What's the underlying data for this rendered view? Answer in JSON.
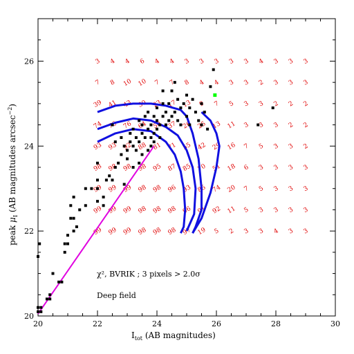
{
  "chart_data": {
    "type": "scatter",
    "xlabel": "I",
    "xlabel_sub": "tot",
    "xlabel_rest": " (AB magnitudes)",
    "ylabel_prefix": "peak ",
    "ylabel_mu": "μ",
    "ylabel_sub": "I",
    "ylabel_rest": "  (AB magnitudes arcsec",
    "ylabel_sup": "−2",
    "ylabel_close": ")",
    "xlim": [
      20,
      30
    ],
    "ylim": [
      20,
      27
    ],
    "xticks": [
      20,
      22,
      24,
      26,
      28,
      30
    ],
    "yticks": [
      20,
      22,
      24,
      26
    ],
    "annotation_chi": "χ², BVRIK ; 3 pixels > 2.0σ",
    "annotation_field": "Deep field",
    "grid_x": [
      22,
      22.5,
      23,
      23.5,
      24,
      24.5,
      25,
      25.5,
      26,
      26.5,
      27,
      27.5,
      28,
      28.5,
      29
    ],
    "grid_y": [
      26,
      25.5,
      25,
      24.5,
      24,
      23.5,
      23,
      22.5,
      22
    ],
    "grid_values": [
      [
        "3",
        "4",
        "4",
        "6",
        "4",
        "4",
        "3",
        "3",
        "3",
        "3",
        "3",
        "4",
        "3",
        "3",
        "3"
      ],
      [
        "7",
        "8",
        "10",
        "10",
        "7",
        "7",
        "8",
        "4",
        "4",
        "3",
        "3",
        "2",
        "3",
        "3",
        "3"
      ],
      [
        "39",
        "41",
        "43",
        "30",
        "23",
        "17",
        "13",
        "9",
        "7",
        "5",
        "3",
        "3",
        "2",
        "2",
        "2"
      ],
      [
        "74",
        "76",
        "76",
        "64",
        "50",
        "37",
        "26",
        "25",
        "13",
        "11",
        "3",
        "3",
        "3",
        "2",
        "2"
      ],
      [
        "93",
        "93",
        "92",
        "88",
        "81",
        "71",
        "55",
        "42",
        "29",
        "16",
        "7",
        "5",
        "3",
        "3",
        "2"
      ],
      [
        "98",
        "98",
        "98",
        "98",
        "95",
        "87",
        "85",
        "70",
        "51",
        "18",
        "6",
        "3",
        "3",
        "3",
        "3"
      ],
      [
        "99",
        "99",
        "99",
        "98",
        "98",
        "96",
        "93",
        "85",
        "74",
        "20",
        "7",
        "5",
        "3",
        "3",
        "3"
      ],
      [
        "99",
        "99",
        "99",
        "98",
        "98",
        "98",
        "96",
        "91",
        "92",
        "11",
        "5",
        "3",
        "3",
        "3",
        "3"
      ],
      [
        "99",
        "99",
        "99",
        "98",
        "98",
        "98",
        "97",
        "19",
        "5",
        "2",
        "3",
        "3",
        "4",
        "3",
        "3"
      ]
    ],
    "points": [
      [
        20,
        20.1
      ],
      [
        20,
        20.2
      ],
      [
        20,
        21.4
      ],
      [
        20.1,
        20.1
      ],
      [
        20.1,
        20.2
      ],
      [
        20.05,
        21.7
      ],
      [
        20.3,
        20.4
      ],
      [
        20.4,
        20.4
      ],
      [
        20.4,
        20.5
      ],
      [
        20.5,
        21
      ],
      [
        20.7,
        20.8
      ],
      [
        20.8,
        20.8
      ],
      [
        20.9,
        21.7
      ],
      [
        20.9,
        21.5
      ],
      [
        21,
        21.7
      ],
      [
        21,
        21.9
      ],
      [
        21.2,
        22.3
      ],
      [
        21.1,
        22.3
      ],
      [
        21.1,
        22.6
      ],
      [
        21.2,
        22.8
      ],
      [
        21.3,
        22.1
      ],
      [
        21.2,
        22
      ],
      [
        21.4,
        22.5
      ],
      [
        21.6,
        23
      ],
      [
        21.6,
        22.6
      ],
      [
        21.8,
        23
      ],
      [
        22,
        23
      ],
      [
        22,
        23.2
      ],
      [
        22,
        23.6
      ],
      [
        22,
        22.7
      ],
      [
        22.2,
        22.6
      ],
      [
        22.2,
        22.8
      ],
      [
        22.3,
        23.2
      ],
      [
        22.4,
        23.3
      ],
      [
        22.5,
        23.2
      ],
      [
        22.6,
        23.5
      ],
      [
        22.7,
        23.6
      ],
      [
        22.8,
        23.8
      ],
      [
        22.8,
        24.2
      ],
      [
        22.9,
        24
      ],
      [
        23,
        23.7
      ],
      [
        23,
        23.9
      ],
      [
        23.1,
        24.1
      ],
      [
        23.1,
        24.3
      ],
      [
        23.2,
        24
      ],
      [
        23.2,
        24.4
      ],
      [
        23.3,
        24.2
      ],
      [
        23.3,
        23.9
      ],
      [
        23.4,
        24.1
      ],
      [
        23.4,
        24.6
      ],
      [
        23.5,
        24.3
      ],
      [
        23.5,
        24.5
      ],
      [
        23.6,
        24.2
      ],
      [
        23.6,
        24.7
      ],
      [
        23.7,
        24.4
      ],
      [
        23.7,
        24.8
      ],
      [
        23.8,
        24.5
      ],
      [
        23.8,
        24.2
      ],
      [
        23.9,
        24.7
      ],
      [
        23.9,
        24.3
      ],
      [
        24,
        24.6
      ],
      [
        24,
        24.4
      ],
      [
        24,
        24.9
      ],
      [
        24.1,
        24.5
      ],
      [
        24.1,
        24.2
      ],
      [
        24.2,
        24.7
      ],
      [
        24.2,
        25
      ],
      [
        24.3,
        24.5
      ],
      [
        24.3,
        24.8
      ],
      [
        24.4,
        24.6
      ],
      [
        24.4,
        25
      ],
      [
        24.5,
        24.7
      ],
      [
        24.5,
        25.3
      ],
      [
        24.6,
        24.8
      ],
      [
        24.6,
        25.5
      ],
      [
        24.7,
        24.6
      ],
      [
        24.7,
        25.1
      ],
      [
        24.8,
        24.9
      ],
      [
        24.8,
        24.5
      ],
      [
        24.9,
        25
      ],
      [
        25,
        24.7
      ],
      [
        25,
        25.2
      ],
      [
        25.1,
        24.5
      ],
      [
        25.1,
        24.9
      ],
      [
        25.2,
        25.1
      ],
      [
        25.3,
        24.8
      ],
      [
        25.4,
        24.6
      ],
      [
        25.5,
        24.5
      ],
      [
        25.5,
        25
      ],
      [
        25.6,
        24.8
      ],
      [
        25.7,
        24.4
      ],
      [
        25.8,
        25.4
      ],
      [
        25.9,
        25.8
      ],
      [
        24.2,
        25.3
      ],
      [
        27.9,
        24.9
      ],
      [
        27.4,
        24.5
      ],
      [
        22.5,
        24.5
      ],
      [
        22.6,
        24.1
      ],
      [
        22.9,
        23.1
      ],
      [
        23.2,
        23.5
      ],
      [
        23.4,
        23.6
      ],
      [
        23.5,
        23.8
      ],
      [
        23.7,
        23.9
      ],
      [
        23.8,
        24
      ],
      [
        23.9,
        24.1
      ]
    ],
    "highlight_point": [
      25.95,
      25.2
    ],
    "curves": [
      [
        [
          22,
          24.8
        ],
        [
          22.6,
          24.95
        ],
        [
          23.2,
          25.0
        ],
        [
          23.8,
          25.0
        ],
        [
          24.3,
          24.95
        ],
        [
          24.8,
          24.85
        ],
        [
          25.0,
          24.7
        ],
        [
          25.2,
          24.3
        ],
        [
          25.4,
          23.7
        ],
        [
          25.5,
          23.0
        ],
        [
          25.5,
          22.5
        ],
        [
          25.3,
          22.1
        ],
        [
          25.2,
          21.95
        ]
      ],
      [
        [
          22,
          24.4
        ],
        [
          22.6,
          24.55
        ],
        [
          23.2,
          24.65
        ],
        [
          23.8,
          24.6
        ],
        [
          24.3,
          24.45
        ],
        [
          24.7,
          24.25
        ],
        [
          25.0,
          23.9
        ],
        [
          25.2,
          23.5
        ],
        [
          25.3,
          23.0
        ],
        [
          25.25,
          22.4
        ],
        [
          25.0,
          22.0
        ]
      ],
      [
        [
          22,
          24.1
        ],
        [
          22.6,
          24.3
        ],
        [
          23.2,
          24.4
        ],
        [
          23.8,
          24.35
        ],
        [
          24.3,
          24.1
        ],
        [
          24.6,
          23.8
        ],
        [
          24.8,
          23.4
        ],
        [
          24.9,
          23.0
        ],
        [
          24.95,
          22.5
        ],
        [
          24.9,
          22.1
        ],
        [
          24.8,
          21.95
        ]
      ],
      [
        [
          25.2,
          21.95
        ],
        [
          25.5,
          22.3
        ],
        [
          25.8,
          22.9
        ],
        [
          26.0,
          23.5
        ],
        [
          26.1,
          24.0
        ],
        [
          26.0,
          24.3
        ],
        [
          25.8,
          24.6
        ],
        [
          25.5,
          24.8
        ]
      ]
    ],
    "fit_line": [
      [
        20,
        20.05
      ],
      [
        23.9,
        24.0
      ]
    ]
  }
}
